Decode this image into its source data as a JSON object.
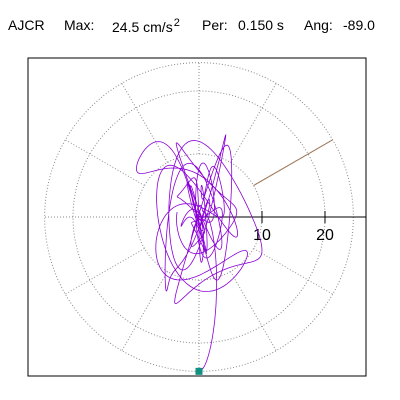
{
  "header": {
    "station": "AJCR",
    "max_label": "Max:",
    "max_value": "24.5 cm/s",
    "max_exponent": "2",
    "per_label": "Per:",
    "per_value": "0.150 s",
    "ang_label": "Ang:",
    "ang_value": "-89.0"
  },
  "chart_data": {
    "type": "scatter",
    "subtype": "polar-particle-motion",
    "title": "",
    "radial_ticks": [
      {
        "value": 10,
        "label": "10"
      },
      {
        "value": 20,
        "label": "20"
      }
    ],
    "rings": [
      10,
      20
    ],
    "spoke_angles_deg": [
      0,
      30,
      60,
      90,
      120,
      150,
      180,
      210,
      240,
      270,
      300,
      330
    ],
    "max_radius": 24.5,
    "axis_line": "positive-x",
    "grid": true,
    "direction_line": {
      "angle_deg": 30,
      "color": "#a07a5a"
    },
    "trace": {
      "color": "#8b00d6",
      "description_points": "particle motion of ground acceleration, cm/s^2",
      "seed": 17,
      "n_points": 1400
    },
    "end_marker": {
      "x": 0.0,
      "y": -24.5,
      "color": "#109080"
    }
  }
}
